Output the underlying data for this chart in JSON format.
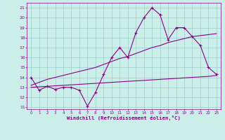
{
  "x_data": [
    0,
    1,
    2,
    3,
    4,
    5,
    6,
    7,
    8,
    9,
    10,
    11,
    12,
    13,
    14,
    15,
    16,
    17,
    18,
    19,
    20,
    21,
    22,
    23
  ],
  "y_line1": [
    14.0,
    12.7,
    13.1,
    12.8,
    13.0,
    13.0,
    12.7,
    11.1,
    12.5,
    14.3,
    16.0,
    17.0,
    16.0,
    18.5,
    20.0,
    21.0,
    20.3,
    17.8,
    19.0,
    19.0,
    18.1,
    17.2,
    15.0,
    14.3
  ],
  "y_line2": [
    13.0,
    13.05,
    13.1,
    13.15,
    13.2,
    13.25,
    13.3,
    13.35,
    13.4,
    13.45,
    13.5,
    13.55,
    13.6,
    13.65,
    13.7,
    13.75,
    13.8,
    13.85,
    13.9,
    13.95,
    14.0,
    14.05,
    14.1,
    14.2
  ],
  "y_line3": [
    13.2,
    13.5,
    13.8,
    14.0,
    14.2,
    14.4,
    14.6,
    14.8,
    15.0,
    15.3,
    15.6,
    15.9,
    16.1,
    16.4,
    16.7,
    17.0,
    17.2,
    17.5,
    17.7,
    17.9,
    18.1,
    18.2,
    18.3,
    18.4
  ],
  "line_color": "#880088",
  "bg_color": "#cceee8",
  "grid_color": "#99cccc",
  "xlabel": "Windchill (Refroidissement éolien,°C)",
  "ylabel_ticks": [
    11,
    12,
    13,
    14,
    15,
    16,
    17,
    18,
    19,
    20,
    21
  ],
  "xlim": [
    -0.5,
    23.5
  ],
  "ylim": [
    10.8,
    21.5
  ],
  "xticks": [
    0,
    1,
    2,
    3,
    4,
    5,
    6,
    7,
    8,
    9,
    10,
    11,
    12,
    13,
    14,
    15,
    16,
    17,
    18,
    19,
    20,
    21,
    22,
    23
  ]
}
